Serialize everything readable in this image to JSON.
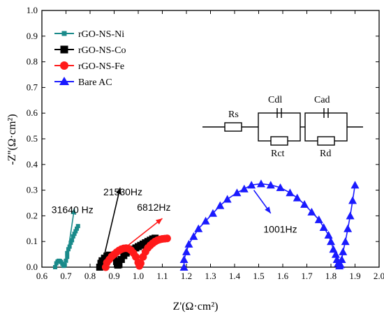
{
  "chart_data": {
    "type": "scatter",
    "title": "",
    "xlabel": "Z'(Ω·cm²)",
    "ylabel": "-Z''(Ω·cm²)",
    "xlim": [
      0.6,
      2.0
    ],
    "ylim": [
      0.0,
      1.0
    ],
    "xticks": [
      "0.6",
      "0.7",
      "0.8",
      "0.9",
      "1.0",
      "1.1",
      "1.2",
      "1.3",
      "1.4",
      "1.5",
      "1.6",
      "1.7",
      "1.8",
      "1.9",
      "2.0"
    ],
    "yticks": [
      "0.0",
      "0.1",
      "0.2",
      "0.3",
      "0.4",
      "0.5",
      "0.6",
      "0.7",
      "0.8",
      "0.9",
      "1.0"
    ],
    "grid": false,
    "legend_position": "top-left",
    "series": [
      {
        "name": "rGO-NS-Ni",
        "color": "#1a8a8a",
        "marker": "small-square",
        "x": [
          0.655,
          0.66,
          0.665,
          0.67,
          0.675,
          0.68,
          0.685,
          0.69,
          0.695,
          0.7,
          0.705,
          0.705,
          0.71,
          0.715,
          0.72,
          0.725,
          0.73,
          0.735,
          0.74,
          0.745,
          0.75
        ],
        "y": [
          0.0,
          0.015,
          0.022,
          0.025,
          0.024,
          0.02,
          0.013,
          0.005,
          0.008,
          0.025,
          0.04,
          0.055,
          0.07,
          0.08,
          0.095,
          0.105,
          0.12,
          0.13,
          0.14,
          0.15,
          0.16
        ]
      },
      {
        "name": "rGO-NS-Co",
        "color": "#000000",
        "marker": "square",
        "x": [
          0.84,
          0.845,
          0.85,
          0.86,
          0.87,
          0.88,
          0.89,
          0.9,
          0.91,
          0.915,
          0.92,
          0.93,
          0.94,
          0.95,
          0.96,
          0.97,
          0.98,
          0.99,
          1.0,
          1.01,
          1.02,
          1.03,
          1.04,
          1.05,
          1.06,
          1.07
        ],
        "y": [
          0.0,
          0.015,
          0.025,
          0.035,
          0.043,
          0.047,
          0.045,
          0.038,
          0.022,
          0.008,
          0.01,
          0.03,
          0.045,
          0.055,
          0.062,
          0.067,
          0.07,
          0.075,
          0.08,
          0.085,
          0.09,
          0.095,
          0.1,
          0.105,
          0.11,
          0.113
        ]
      },
      {
        "name": "rGO-NS-Fe",
        "color": "#ff1a1a",
        "marker": "circle",
        "x": [
          0.865,
          0.87,
          0.88,
          0.89,
          0.9,
          0.91,
          0.92,
          0.93,
          0.94,
          0.95,
          0.96,
          0.97,
          0.98,
          0.99,
          1.0,
          1.005,
          1.01,
          1.02,
          1.03,
          1.04,
          1.05,
          1.06,
          1.07,
          1.08,
          1.09,
          1.1,
          1.11,
          1.12
        ],
        "y": [
          0.0,
          0.018,
          0.03,
          0.042,
          0.05,
          0.058,
          0.065,
          0.07,
          0.073,
          0.074,
          0.072,
          0.066,
          0.055,
          0.04,
          0.018,
          0.005,
          0.015,
          0.04,
          0.06,
          0.075,
          0.085,
          0.093,
          0.1,
          0.105,
          0.108,
          0.11,
          0.111,
          0.112
        ]
      },
      {
        "name": "Bare AC",
        "color": "#1a1aff",
        "marker": "triangle",
        "x": [
          1.19,
          1.19,
          1.2,
          1.21,
          1.23,
          1.25,
          1.28,
          1.31,
          1.34,
          1.37,
          1.41,
          1.44,
          1.47,
          1.51,
          1.55,
          1.59,
          1.63,
          1.66,
          1.69,
          1.72,
          1.75,
          1.77,
          1.79,
          1.8,
          1.81,
          1.82,
          1.825,
          1.83,
          1.835,
          1.84,
          1.845,
          1.85,
          1.86,
          1.87,
          1.88,
          1.89,
          1.9
        ],
        "y": [
          0.0,
          0.03,
          0.06,
          0.09,
          0.12,
          0.15,
          0.18,
          0.21,
          0.24,
          0.265,
          0.29,
          0.305,
          0.32,
          0.325,
          0.32,
          0.31,
          0.29,
          0.27,
          0.245,
          0.215,
          0.185,
          0.155,
          0.125,
          0.1,
          0.07,
          0.05,
          0.03,
          0.015,
          0.005,
          0.01,
          0.03,
          0.06,
          0.1,
          0.15,
          0.2,
          0.26,
          0.32
        ]
      }
    ],
    "annotations": [
      {
        "text": "31640 Hz",
        "color": "#1a8a8a",
        "arrow_from": [
          0.705,
          0.04
        ],
        "arrow_to": [
          0.735,
          0.23
        ],
        "label_at": [
          0.64,
          0.21
        ]
      },
      {
        "text": "21530Hz",
        "color": "#000000",
        "arrow_from": [
          0.855,
          0.03
        ],
        "arrow_to": [
          0.925,
          0.31
        ],
        "label_at": [
          0.855,
          0.28
        ]
      },
      {
        "text": "6812Hz",
        "color": "#ff1a1a",
        "arrow_from": [
          0.87,
          0.02
        ],
        "arrow_to": [
          1.1,
          0.19
        ],
        "label_at": [
          0.995,
          0.22
        ]
      },
      {
        "text": "1001Hz",
        "color": "#1a1aff",
        "arrow_from": [
          1.48,
          0.3
        ],
        "arrow_to": [
          1.55,
          0.21
        ],
        "label_at": [
          1.52,
          0.135
        ]
      }
    ],
    "circuit_labels": [
      "Rs",
      "Cdl",
      "Rct",
      "Cad",
      "Rd"
    ]
  }
}
